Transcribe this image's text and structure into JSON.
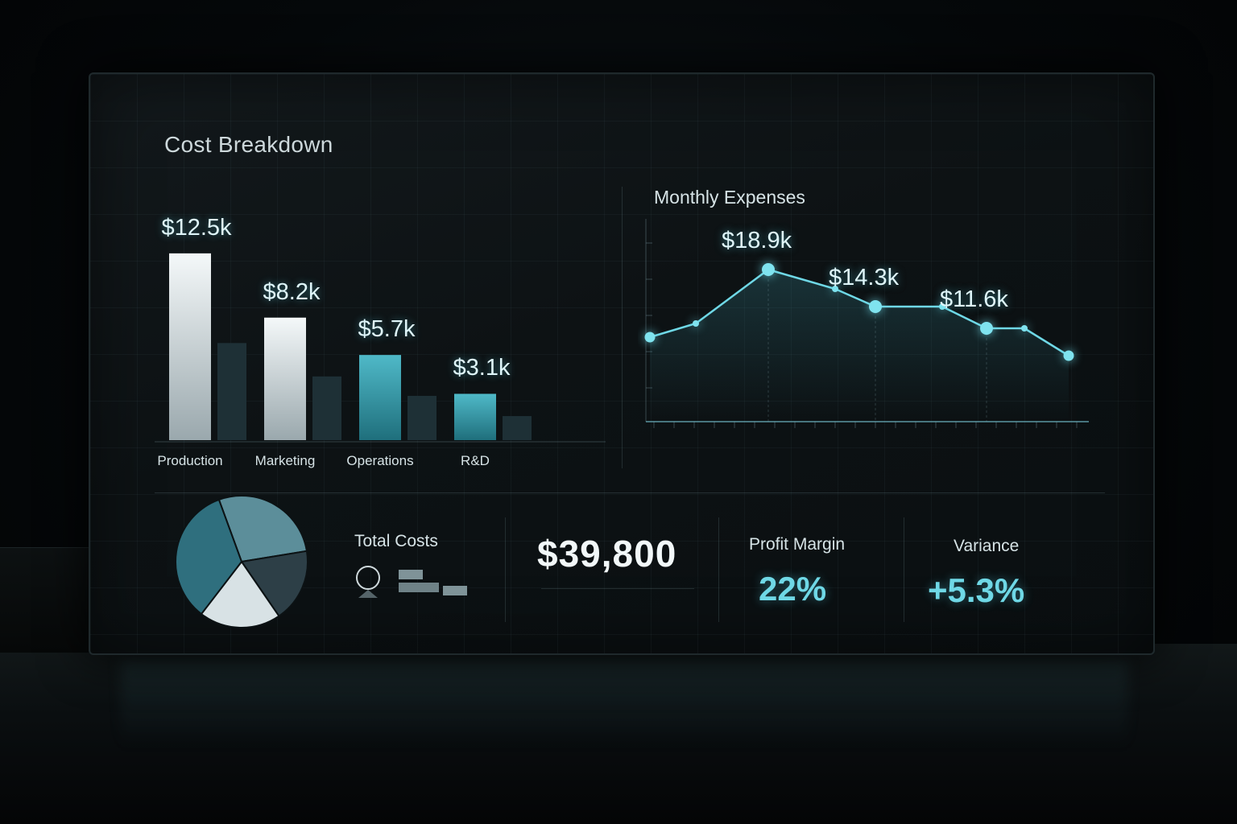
{
  "dashboard": {
    "title": "Cost Breakdown"
  },
  "colors": {
    "accent": "#5fc8d6",
    "bar_white": "#e9eef0",
    "bar_teal": "#3aa7b6",
    "bar_shadow": "#1e3036"
  },
  "chart_data": [
    {
      "type": "bar",
      "title": "Cost Breakdown",
      "categories": [
        "Production",
        "Marketing",
        "Operations",
        "R&D"
      ],
      "values": [
        12.5,
        8.2,
        5.7,
        3.1
      ],
      "value_labels": [
        "$12.5k",
        "$8.2k",
        "$5.7k",
        "$3.1k"
      ],
      "ylim": [
        0,
        14
      ]
    },
    {
      "type": "line",
      "title": "Monthly Expenses",
      "values": [
        10.5,
        12.2,
        18.9,
        16.5,
        14.3,
        14.3,
        11.6,
        11.6,
        8.2
      ],
      "value_labels": [
        {
          "index": 2,
          "label": "$18.9k"
        },
        {
          "index": 4,
          "label": "$14.3k"
        },
        {
          "index": 6,
          "label": "$11.6k"
        }
      ],
      "ylim": [
        0,
        24
      ]
    },
    {
      "type": "pie",
      "values": [
        28,
        18,
        20,
        34
      ],
      "colors": [
        "#5c8e9a",
        "#2d3f47",
        "#d8e2e5",
        "#2f6f7e"
      ]
    }
  ],
  "stats": {
    "total_costs_label": "Total Costs",
    "total_costs_value": "$39,800",
    "profit_margin_label": "Profit Margin",
    "profit_margin_value": "22%",
    "variance_label": "Variance",
    "variance_value": "+5.3%"
  }
}
